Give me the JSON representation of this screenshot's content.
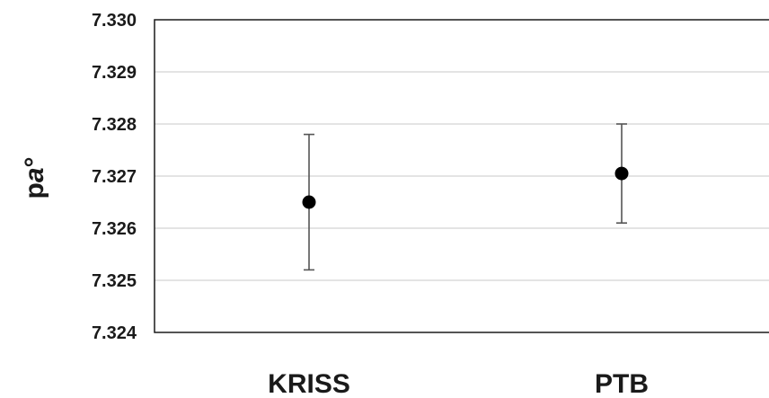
{
  "chart_data": {
    "type": "scatter",
    "title": "",
    "xlabel": "",
    "ylabel_prefix": "p",
    "ylabel_italic": "a",
    "ylabel_suffix": "°",
    "categories": [
      "KRISS",
      "PTB"
    ],
    "ylim": [
      7.324,
      7.33
    ],
    "yticks": [
      "7.324",
      "7.325",
      "7.326",
      "7.327",
      "7.328",
      "7.329",
      "7.330"
    ],
    "grid": true,
    "series": [
      {
        "values": [
          7.3265,
          7.32705
        ],
        "error_low": [
          7.3252,
          7.3261
        ],
        "error_high": [
          7.3278,
          7.328
        ]
      }
    ]
  }
}
